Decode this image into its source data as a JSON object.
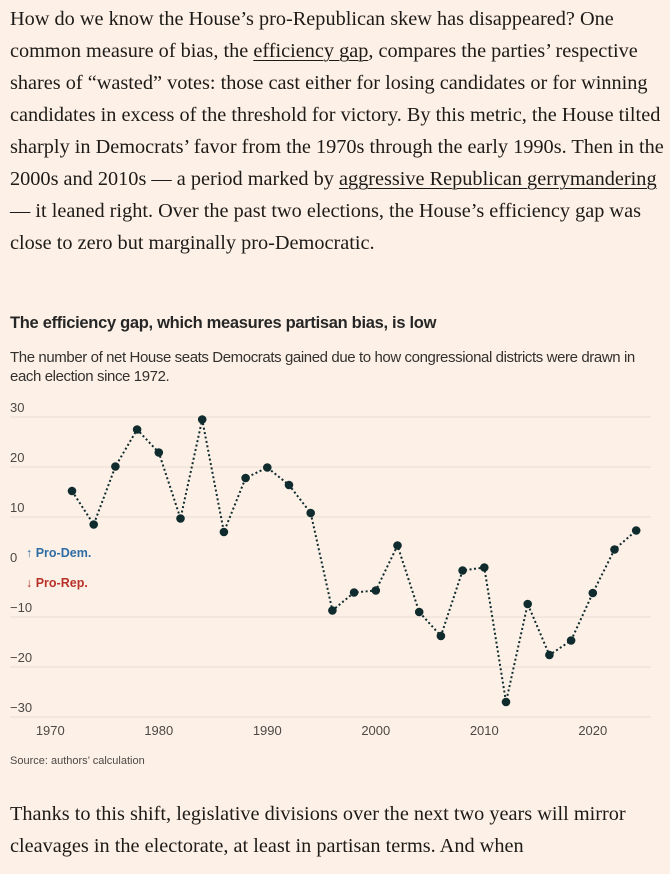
{
  "article": {
    "paragraph1": [
      {
        "text": "How do we know the House’s pro-Republican skew has disappeared? One common measure of bias, the "
      },
      {
        "text": "efficiency gap",
        "link": true
      },
      {
        "text": ", compares the parties’ respective shares of “wasted” votes: those cast either for losing candidates or for winning candidates in excess of the threshold for victory. By this metric, the House tilted sharply in Democrats’ favor from the 1970s through the early 1990s. Then in the 2000s and 2010s — a period marked by "
      },
      {
        "text": "aggressive Republican gerrymandering",
        "link": true
      },
      {
        "text": " — it leaned right. Over the past two elections, the House’s efficiency gap was close to zero but marginally pro-Democratic."
      }
    ],
    "paragraph2": "Thanks to this shift, legislative divisions over the next two years will mirror cleavages in the electorate, at least in partisan terms. And when"
  },
  "chart_data": {
    "type": "line",
    "title": "The efficiency gap, which measures partisan bias, is low",
    "subtitle": "The number of net House seats Democrats gained due to how congressional districts were drawn in each election since 1972.",
    "source": "Source: authors’ calculation",
    "xlabel": "",
    "ylabel": "",
    "xlim": [
      1970,
      2025
    ],
    "ylim": [
      -30,
      30
    ],
    "x_ticks": [
      "1970",
      "1980",
      "1990",
      "2000",
      "2010",
      "2020"
    ],
    "y_ticks": [
      "30",
      "20",
      "10",
      "0",
      "−10",
      "−20",
      "−30"
    ],
    "grid": true,
    "annotations": {
      "pro_dem": "↑ Pro-Dem.",
      "pro_rep": "↓ Pro-Rep."
    },
    "colors": {
      "line": "#0f2b2e",
      "pro_dem": "#2e6da4",
      "pro_rep": "#b8322a",
      "grid": "#e6dcd3"
    },
    "x": [
      1972,
      1974,
      1976,
      1978,
      1980,
      1982,
      1984,
      1986,
      1988,
      1990,
      1992,
      1994,
      1996,
      1998,
      2000,
      2002,
      2004,
      2006,
      2008,
      2010,
      2012,
      2014,
      2016,
      2018,
      2020,
      2022,
      2024
    ],
    "values": [
      15.2,
      8.5,
      20.1,
      27.5,
      22.9,
      9.7,
      29.5,
      7.0,
      17.8,
      19.9,
      16.4,
      10.8,
      -8.7,
      -5.1,
      -4.7,
      4.3,
      -9.0,
      -13.8,
      -0.7,
      -0.1,
      -27.0,
      -7.4,
      -17.6,
      -14.7,
      -5.2,
      3.5,
      7.3
    ]
  }
}
